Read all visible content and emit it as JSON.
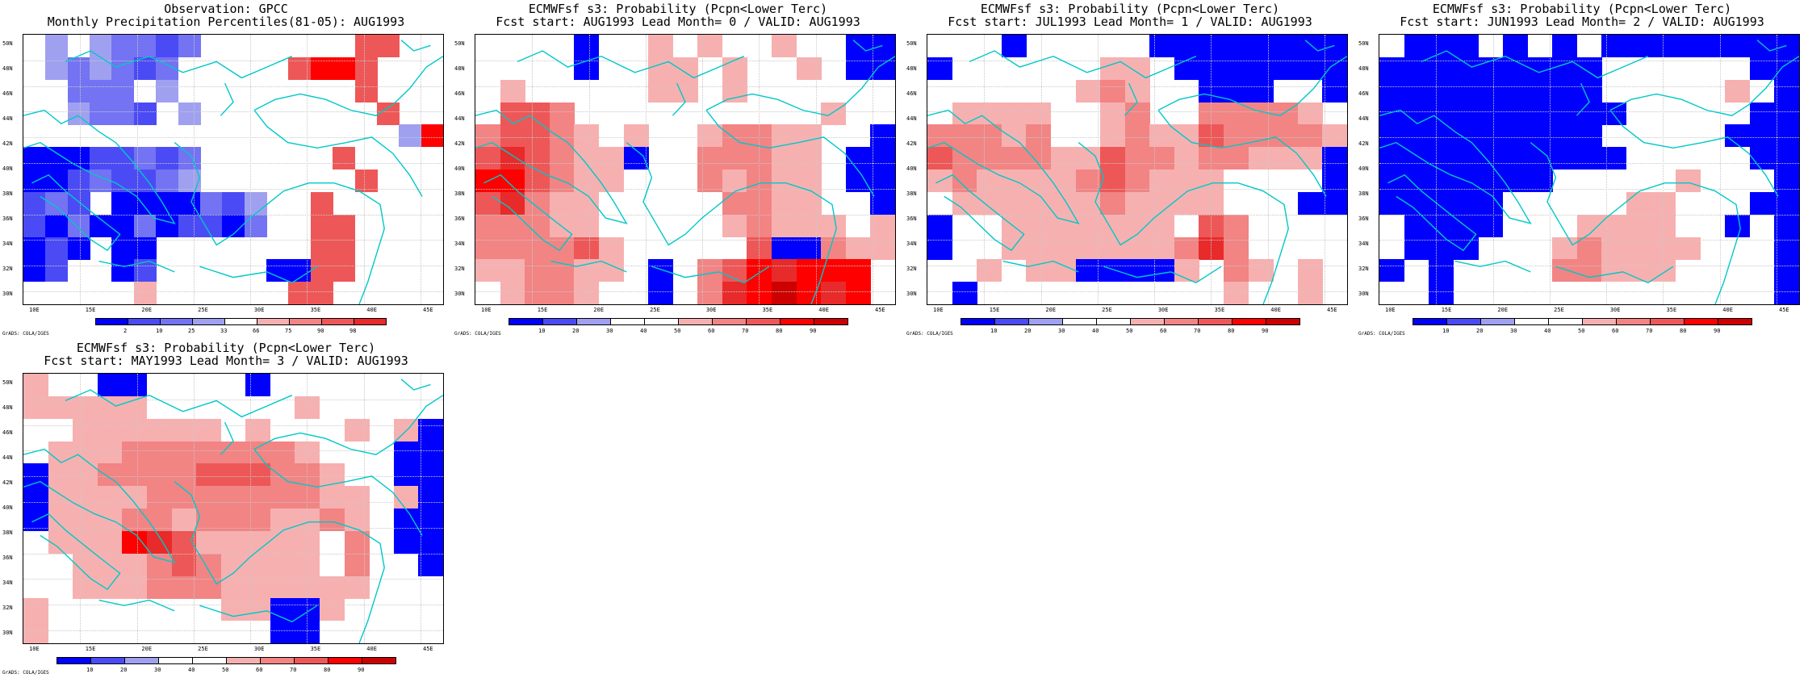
{
  "page_label": "GrADS: COLA/IGES",
  "colors": {
    "b1": "#0000ff",
    "b2": "#4b4bf5",
    "b3": "#7373f3",
    "b4": "#a0a0f0",
    "b5": "#c4c4f8",
    "w": "#ffffff",
    "r1": "#f7b0b0",
    "r2": "#f28484",
    "r3": "#ee5757",
    "r4": "#e82a2a",
    "r5": "#ff0000",
    "r6": "#cc0000",
    "coast": "#00c8c8"
  },
  "lat_labels": [
    "50N",
    "48N",
    "46N",
    "44N",
    "42N",
    "40N",
    "38N",
    "36N",
    "34N",
    "32N",
    "30N"
  ],
  "lon_labels": [
    "10E",
    "15E",
    "20E",
    "25E",
    "30E",
    "35E",
    "40E",
    "45E"
  ],
  "map_extent": {
    "lon": [
      9,
      46
    ],
    "lat": [
      30,
      51
    ]
  },
  "panels": [
    {
      "title1": "Observation: GPCC",
      "title2": "Monthly Precipitation Percentiles(81-05): AUG1993",
      "colorbar": {
        "labels": [
          "2",
          "10",
          "25",
          "33",
          "66",
          "75",
          "90",
          "98"
        ],
        "colors": [
          "b1",
          "b2",
          "b3",
          "b4",
          "w",
          "r1",
          "r2",
          "r3",
          "r4"
        ]
      },
      "grid": [
        "wb4wb4b3b3b2b3wwwwwwwr3r3",
        "wb4b3b4b3b2b3wwwwwr3r5r5r3",
        "wwb3b3b3wb4wwwwwwwwr3",
        "wwb4b3b3b2wb4wwwwwwwwr3",
        "wwwwwwwwwwwwwwwwwb4r5",
        "b1b1b1b2b2b3b2b3wwwwwwr3ww",
        "b1b1b2b3b2b2b3b4wwwwwwwr3",
        "b2b3b2wb1b1b1b1b3b2b4wwr3ww",
        "b2b1b3b1b1b3b1b2b2b1b3wwr3r3",
        "b1b2b1wb1b1wwwwwwwr3r3",
        "b1b2wwb1b2wwwwwb1b1r3r3",
        "wwwwwr1wwwwwwr3r3"
      ]
    },
    {
      "title1": "ECMWFsf s3: Probability (Pcpn<Lower Terc)",
      "title2": "Fcst start: AUG1993  Lead Month= 0 / VALID: AUG1993",
      "colorbar": {
        "labels": [
          "10",
          "20",
          "30",
          "40",
          "50",
          "60",
          "70",
          "80",
          "90"
        ],
        "colors": [
          "b1",
          "b2",
          "b4",
          "w",
          "w",
          "r1",
          "r2",
          "r3",
          "r5",
          "r6"
        ]
      }
    },
    {
      "title1": "ECMWFsf s3: Probability (Pcpn<Lower Terc)",
      "title2": "Fcst start: JUL1993  Lead Month= 1 / VALID: AUG1993",
      "colorbar": {
        "labels": [
          "10",
          "20",
          "30",
          "40",
          "50",
          "60",
          "70",
          "80",
          "90"
        ],
        "colors": [
          "b1",
          "b2",
          "b4",
          "w",
          "w",
          "r1",
          "r2",
          "r3",
          "r5",
          "r6"
        ]
      }
    },
    {
      "title1": "ECMWFsf s3: Probability (Pcpn<Lower Terc)",
      "title2": "Fcst start: JUN1993  Lead Month= 2 / VALID: AUG1993",
      "colorbar": {
        "labels": [
          "10",
          "20",
          "30",
          "40",
          "50",
          "60",
          "70",
          "80",
          "90"
        ],
        "colors": [
          "b1",
          "b2",
          "b4",
          "w",
          "w",
          "r1",
          "r2",
          "r3",
          "r5",
          "r6"
        ]
      }
    },
    {
      "title1": "ECMWFsf s3: Probability (Pcpn<Lower Terc)",
      "title2": "Fcst start: MAY1993  Lead Month= 3 / VALID: AUG1993",
      "colorbar": {
        "labels": [
          "10",
          "20",
          "30",
          "40",
          "50",
          "60",
          "70",
          "80",
          "90"
        ],
        "colors": [
          "b1",
          "b2",
          "b4",
          "w",
          "w",
          "r1",
          "r2",
          "r3",
          "r5",
          "r6"
        ]
      }
    }
  ]
}
